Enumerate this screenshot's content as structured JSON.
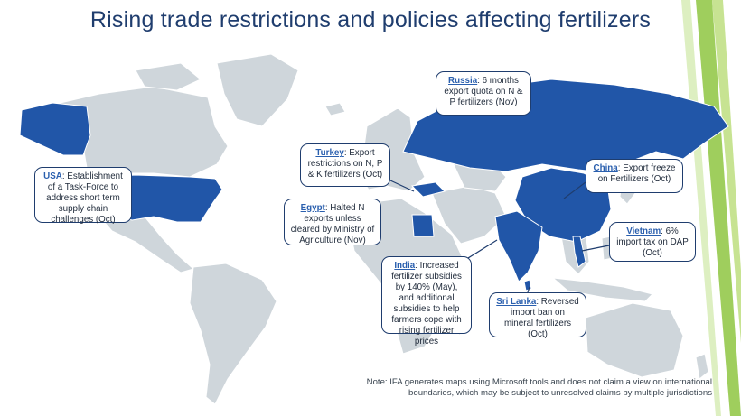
{
  "title": "Rising trade restrictions and policies affecting fertilizers",
  "colors": {
    "highlight": "#2156a8",
    "land": "#cfd6db",
    "callout_border": "#1f3d6e",
    "title": "#1f3d6e"
  },
  "callouts": [
    {
      "id": "usa",
      "country": "USA",
      "text": ": Establishment of a Task-Force to address short term supply chain challenges (Oct)"
    },
    {
      "id": "turkey",
      "country": "Turkey",
      "text": ": Export restrictions on N, P & K fertilizers (Oct)"
    },
    {
      "id": "egypt",
      "country": "Egypt",
      "text": ": Halted N exports unless cleared by Ministry of Agriculture (Nov)"
    },
    {
      "id": "russia",
      "country": "Russia",
      "text": ":  6 months export quota on N & P fertilizers (Nov)"
    },
    {
      "id": "china",
      "country": "China",
      "text": ": Export freeze on Fertilizers (Oct)"
    },
    {
      "id": "vietnam",
      "country": "Vietnam",
      "text": ": 6% import tax on DAP (Oct)"
    },
    {
      "id": "india",
      "country": "India",
      "text": ": Increased fertilizer subsidies by 140% (May), and additional subsidies to help farmers cope with rising fertilizer prices"
    },
    {
      "id": "srilanka",
      "country": "Sri Lanka",
      "text": ": Reversed import ban on mineral fertilizers (Oct)"
    }
  ],
  "note": "Note: IFA generates maps using Microsoft tools and does not claim a view on international boundaries, which may be subject to unresolved claims by multiple jurisdictions"
}
